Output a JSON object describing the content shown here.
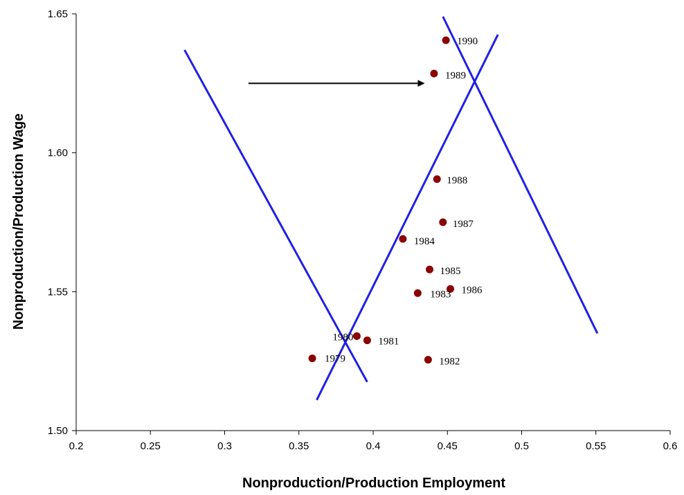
{
  "chart_data": {
    "type": "scatter",
    "xlabel": "Nonproduction/Production Employment",
    "ylabel": "Nonproduction/Production Wage",
    "xlim": [
      0.2,
      0.6
    ],
    "ylim": [
      1.5,
      1.65
    ],
    "x_ticks": [
      "0.2",
      "0.25",
      "0.3",
      "0.35",
      "0.4",
      "0.45",
      "0.5",
      "0.55",
      "0.6"
    ],
    "y_ticks": [
      "1.50",
      "1.55",
      "1.60",
      "1.65"
    ],
    "grid": false,
    "marker_color": "#8b0000",
    "line_color": "#1f1fe6",
    "points": [
      {
        "label": "1979",
        "x": 0.359,
        "y": 1.526
      },
      {
        "label": "1980",
        "x": 0.389,
        "y": 1.534
      },
      {
        "label": "1981",
        "x": 0.396,
        "y": 1.5325
      },
      {
        "label": "1982",
        "x": 0.437,
        "y": 1.5255
      },
      {
        "label": "1983",
        "x": 0.43,
        "y": 1.5495
      },
      {
        "label": "1984",
        "x": 0.42,
        "y": 1.569
      },
      {
        "label": "1985",
        "x": 0.438,
        "y": 1.558
      },
      {
        "label": "1986",
        "x": 0.452,
        "y": 1.551
      },
      {
        "label": "1987",
        "x": 0.447,
        "y": 1.575
      },
      {
        "label": "1988",
        "x": 0.443,
        "y": 1.5905
      },
      {
        "label": "1989",
        "x": 0.441,
        "y": 1.6285
      },
      {
        "label": "1990",
        "x": 0.449,
        "y": 1.6405
      }
    ],
    "lines": [
      {
        "x1": 0.273,
        "y1": 1.637,
        "x2": 0.396,
        "y2": 1.5175
      },
      {
        "x1": 0.362,
        "y1": 1.511,
        "x2": 0.484,
        "y2": 1.6425
      },
      {
        "x1": 0.447,
        "y1": 1.649,
        "x2": 0.551,
        "y2": 1.535
      }
    ],
    "arrow": {
      "x1": 0.316,
      "y1": 1.625,
      "x2": 0.43,
      "y2": 1.625
    }
  }
}
